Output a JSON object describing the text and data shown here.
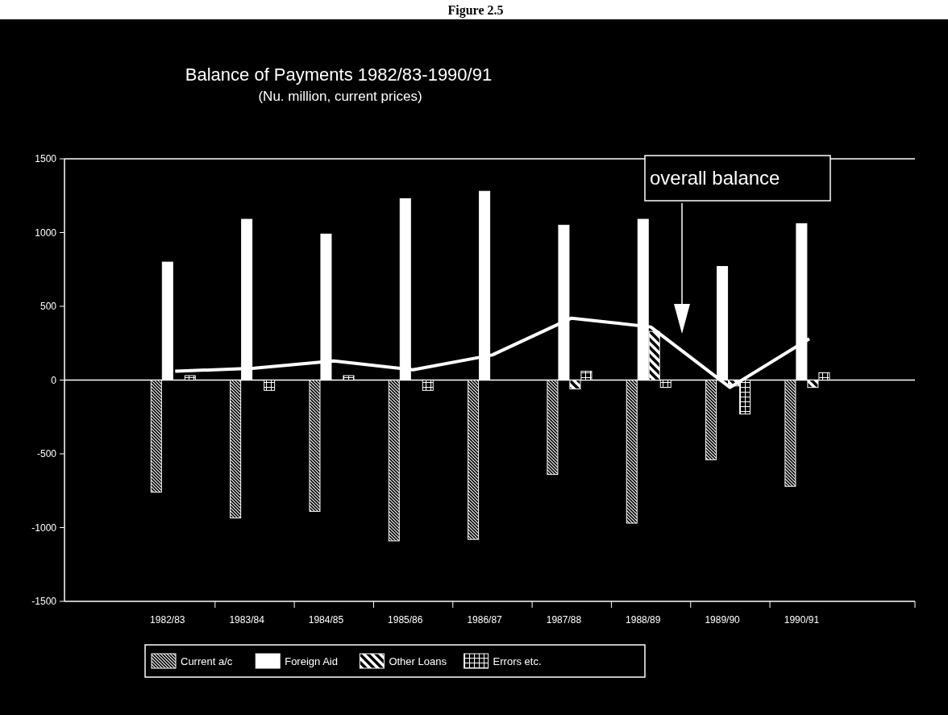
{
  "chart_data": {
    "type": "bar",
    "title": "Balance of Payments 1982/83-1990/91",
    "subtitle": "(Nu. million, current prices)",
    "annotations": [
      "Figure 2.5"
    ],
    "categories": [
      "1982/83",
      "1983/84",
      "1984/85",
      "1985/86",
      "1986/87",
      "1987/88",
      "1988/89",
      "1989/90",
      "1990/91"
    ],
    "series": [
      {
        "name": "Current a/c",
        "color": "#ffffff",
        "values": [
          -760,
          -935,
          -890,
          -1090,
          -1080,
          -640,
          -970,
          -540,
          -720
        ]
      },
      {
        "name": "Foreign Aid",
        "color": "#ffffff",
        "values": [
          800,
          1090,
          990,
          1230,
          1280,
          1050,
          1090,
          770,
          1060
        ]
      },
      {
        "name": "Other Loans",
        "color": "#ffffff",
        "values": [
          null,
          null,
          null,
          null,
          null,
          -60,
          330,
          -40,
          -50
        ]
      },
      {
        "name": "Errors etc.",
        "color": "#ffffff",
        "values": [
          30,
          -70,
          30,
          -70,
          null,
          60,
          -50,
          -230,
          50
        ]
      },
      {
        "name": "overall balance",
        "type": "line",
        "color": "#ffffff",
        "values": [
          60,
          80,
          130,
          70,
          170,
          420,
          360,
          -50,
          280
        ]
      }
    ],
    "ylim": [
      -1500,
      1500
    ],
    "yticks": [
      -1500,
      -1000,
      -500,
      0,
      500,
      1000,
      1500
    ],
    "legend": "bottom",
    "line_style": "solid"
  }
}
